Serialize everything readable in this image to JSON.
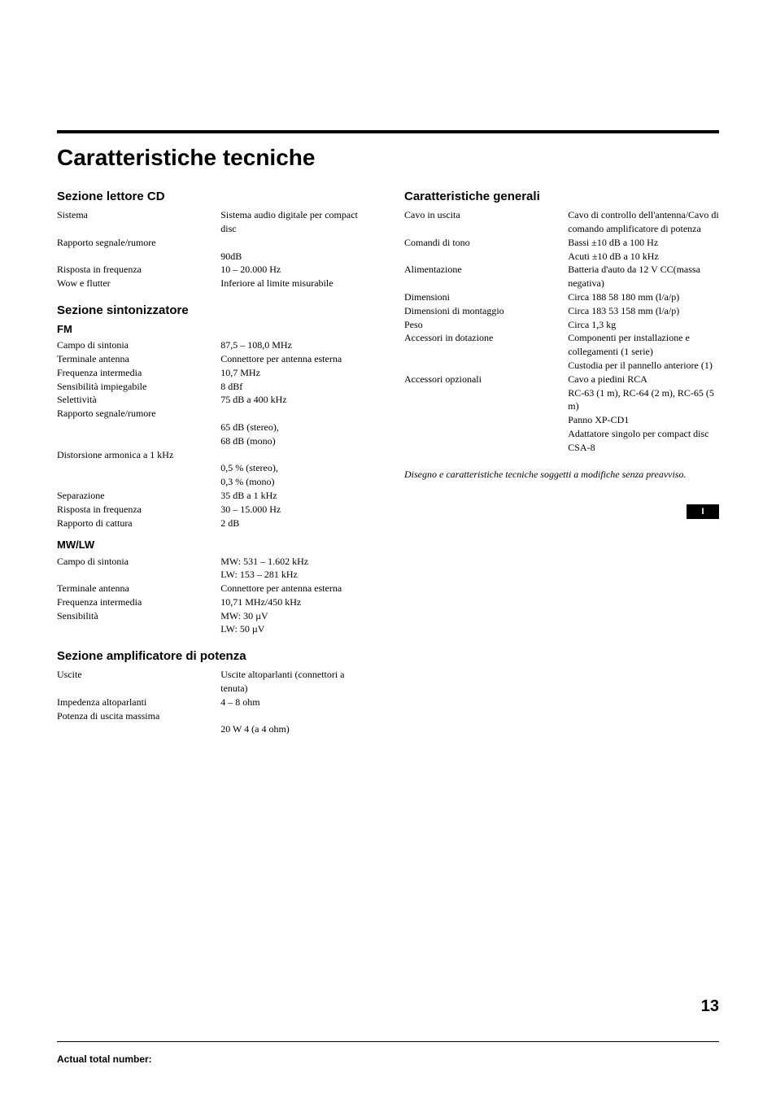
{
  "mainTitle": "Caratteristiche tecniche",
  "left": {
    "cd": {
      "heading": "Sezione lettore CD",
      "rows": [
        {
          "label": "Sistema",
          "value": "Sistema audio digitale per compact disc"
        },
        {
          "label": "Rapporto segnale/rumore",
          "value": ""
        },
        {
          "label": "",
          "value": "90dB"
        },
        {
          "label": "Risposta in frequenza",
          "value": "10 – 20.000 Hz"
        },
        {
          "label": "Wow e flutter",
          "value": "Inferiore al limite misurabile"
        }
      ]
    },
    "tuner": {
      "heading": "Sezione sintonizzatore",
      "fm": {
        "sub": "FM",
        "rows": [
          {
            "label": "Campo di sintonia",
            "value": "87,5 – 108,0 MHz"
          },
          {
            "label": "Terminale antenna",
            "value": "Connettore per antenna esterna"
          },
          {
            "label": "Frequenza intermedia",
            "value": "10,7 MHz"
          },
          {
            "label": "Sensibilità impiegabile",
            "value": "8 dBf"
          },
          {
            "label": "Selettività",
            "value": "75 dB a 400 kHz"
          },
          {
            "label": "Rapporto segnale/rumore",
            "value": ""
          },
          {
            "label": "",
            "value": "65 dB (stereo),"
          },
          {
            "label": "",
            "value": "68 dB (mono)"
          },
          {
            "label": "Distorsione armonica a 1 kHz",
            "value": ""
          },
          {
            "label": "",
            "value": "0,5 % (stereo),"
          },
          {
            "label": "",
            "value": "0,3 % (mono)"
          },
          {
            "label": "Separazione",
            "value": "35 dB a 1 kHz"
          },
          {
            "label": "Risposta in frequenza",
            "value": "30 – 15.000 Hz"
          },
          {
            "label": "Rapporto di cattura",
            "value": "2 dB"
          }
        ]
      },
      "mwlw": {
        "sub": "MW/LW",
        "rows": [
          {
            "label": "Campo di sintonia",
            "value": "MW: 531 – 1.602 kHz"
          },
          {
            "label": "",
            "value": "LW: 153 – 281 kHz"
          },
          {
            "label": "Terminale antenna",
            "value": "Connettore per antenna esterna"
          },
          {
            "label": "Frequenza intermedia",
            "value": "10,71 MHz/450 kHz"
          },
          {
            "label": "Sensibilità",
            "value": "MW: 30 µV"
          },
          {
            "label": "",
            "value": "LW: 50 µV"
          }
        ]
      }
    },
    "amp": {
      "heading": "Sezione amplificatore di potenza",
      "rows": [
        {
          "label": "Uscite",
          "value": "Uscite altoparlanti (connettori a tenuta)"
        },
        {
          "label": "Impedenza altoparlanti",
          "value": "4 – 8 ohm"
        },
        {
          "label": "Potenza di uscita massima",
          "value": ""
        },
        {
          "label": "",
          "value": "20 W   4 (a 4 ohm)"
        }
      ]
    }
  },
  "right": {
    "general": {
      "heading": "Caratteristiche generali",
      "rows": [
        {
          "label": "Cavo in uscita",
          "value": "Cavo di controllo dell'antenna/Cavo di comando amplificatore di potenza"
        },
        {
          "label": "Comandi di tono",
          "value": "Bassi ±10 dB a 100 Hz"
        },
        {
          "label": "",
          "value": "Acuti ±10 dB a 10 kHz"
        },
        {
          "label": "Alimentazione",
          "value": "Batteria d'auto da 12 V CC(massa negativa)"
        },
        {
          "label": "Dimensioni",
          "value": "Circa 188   58   180 mm (l/a/p)"
        },
        {
          "label": "Dimensioni di montaggio",
          "value": "Circa 183   53   158 mm (l/a/p)"
        },
        {
          "label": "Peso",
          "value": "Circa 1,3 kg"
        },
        {
          "label": "Accessori in dotazione",
          "value": "Componenti per installazione e collegamenti (1 serie)"
        },
        {
          "label": "",
          "value": "Custodia per il pannello anteriore (1)"
        },
        {
          "label": "Accessori opzionali",
          "value": "Cavo a piedini RCA"
        },
        {
          "label": "",
          "value": "RC-63 (1 m), RC-64 (2 m), RC-65 (5 m)"
        },
        {
          "label": "",
          "value": "Panno XP-CD1"
        },
        {
          "label": "",
          "value": "Adattatore singolo per compact disc CSA-8"
        }
      ]
    },
    "note": "Disegno e caratteristiche tecniche soggetti a modifiche senza preavviso."
  },
  "langBadge": "I",
  "pageNum": "13",
  "footer": "Actual total number:"
}
